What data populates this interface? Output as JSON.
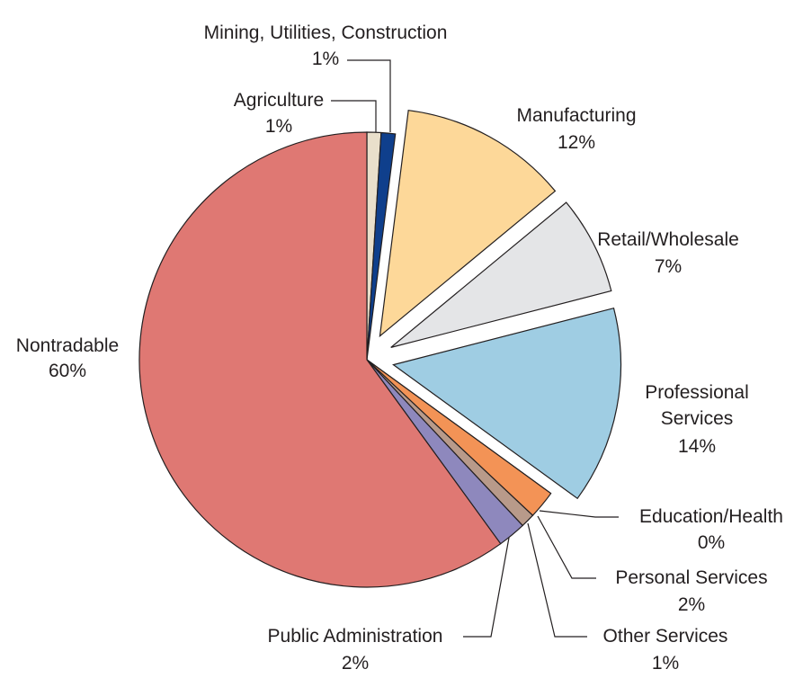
{
  "chart_data": {
    "type": "pie",
    "categories": [
      "Agriculture",
      "Mining, Utilities, Construction",
      "Manufacturing",
      "Retail/Wholesale",
      "Professional Services",
      "Education/Health",
      "Personal Services",
      "Other Services",
      "Public Administration",
      "Nontradable"
    ],
    "values": [
      1,
      1,
      12,
      7,
      14,
      0,
      2,
      1,
      2,
      60
    ],
    "value_labels": [
      "1%",
      "1%",
      "12%",
      "7%",
      "14%",
      "0%",
      "2%",
      "1%",
      "2%",
      "60%"
    ],
    "colors": [
      "#e9dfcb",
      "#0f3f8c",
      "#fdd899",
      "#e4e5e7",
      "#9fcde3",
      "#b8cc8e",
      "#f39356",
      "#b89a8a",
      "#8e88bd",
      "#df7873"
    ],
    "explode": [
      false,
      false,
      true,
      true,
      true,
      false,
      false,
      false,
      false,
      false
    ]
  }
}
